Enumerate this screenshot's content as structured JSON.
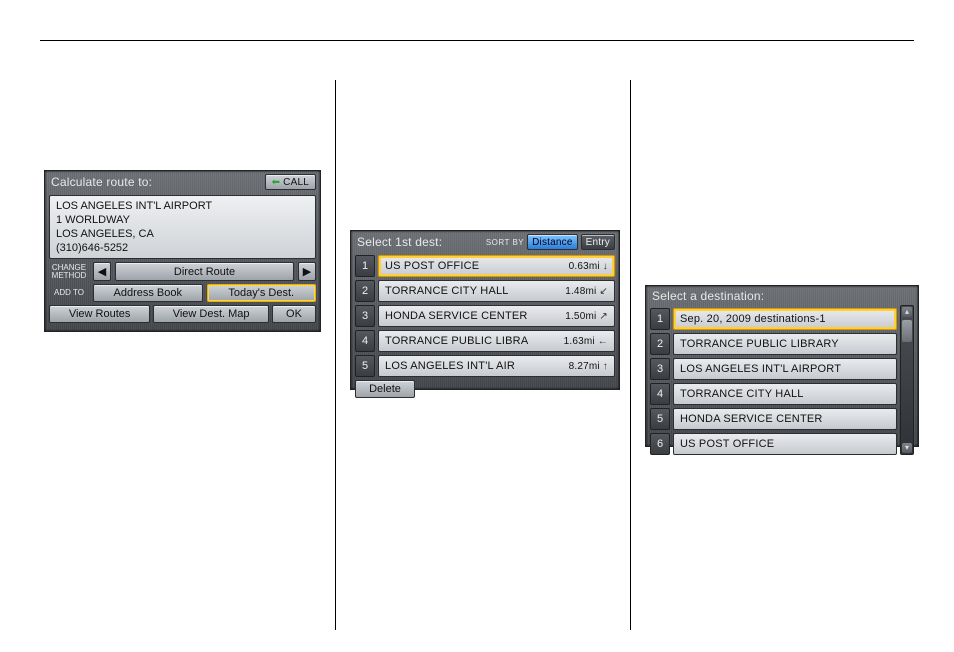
{
  "panel1": {
    "title": "Calculate route to:",
    "call_button": "CALL",
    "address": {
      "line1": "LOS ANGELES INT'L AIRPORT",
      "line2": "1 WORLDWAY",
      "line3": "LOS ANGELES, CA",
      "line4": "(310)646-5252"
    },
    "change_method_label": "CHANGE\nMETHOD",
    "route_mode": "Direct Route",
    "add_to_label": "ADD TO",
    "address_book_btn": "Address Book",
    "todays_dest_btn": "Today's Dest.",
    "view_routes_btn": "View Routes",
    "view_dest_map_btn": "View Dest. Map",
    "ok_btn": "OK",
    "colors": {
      "call_green_arrow": "#2aa53a",
      "highlight_border": "#ffcf33"
    }
  },
  "panel2": {
    "title": "Select 1st dest:",
    "sort_by_label": "SORT BY",
    "sort_distance": "Distance",
    "sort_entry": "Entry",
    "sort_selected": "Distance",
    "rows": [
      {
        "n": "1",
        "name": "US POST OFFICE",
        "dist": "0.63mi",
        "dir": "↓",
        "selected": true
      },
      {
        "n": "2",
        "name": "TORRANCE CITY HALL",
        "dist": "1.48mi",
        "dir": "↙",
        "selected": false
      },
      {
        "n": "3",
        "name": "HONDA SERVICE CENTER",
        "dist": "1.50mi",
        "dir": "↗",
        "selected": false
      },
      {
        "n": "4",
        "name": "TORRANCE PUBLIC LIBRA",
        "dist": "1.63mi",
        "dir": "←",
        "selected": false
      },
      {
        "n": "5",
        "name": "LOS ANGELES INT'L AIR",
        "dist": "8.27mi",
        "dir": "↑",
        "selected": false
      }
    ],
    "delete_btn": "Delete"
  },
  "panel3": {
    "title": "Select a destination:",
    "rows": [
      {
        "n": "1",
        "name": "Sep. 20, 2009 destinations-1",
        "selected": true
      },
      {
        "n": "2",
        "name": "TORRANCE PUBLIC LIBRARY",
        "selected": false
      },
      {
        "n": "3",
        "name": "LOS ANGELES INT'L AIRPORT",
        "selected": false
      },
      {
        "n": "4",
        "name": "TORRANCE CITY HALL",
        "selected": false
      },
      {
        "n": "5",
        "name": "HONDA SERVICE CENTER",
        "selected": false
      },
      {
        "n": "6",
        "name": "US POST OFFICE",
        "selected": false
      }
    ]
  },
  "style": {
    "panel_bg_top": "#6a6d72",
    "panel_bg_bottom": "#3d4045",
    "button_face_top": "#cfd3d8",
    "button_face_bottom": "#9ea3a9",
    "selected_outline": "#ffcf33",
    "sort_active_bg_top": "#7fc4ff",
    "sort_active_bg_bottom": "#2a7fd6",
    "text_light": "#e8e8e8",
    "text_dark": "#111111"
  }
}
